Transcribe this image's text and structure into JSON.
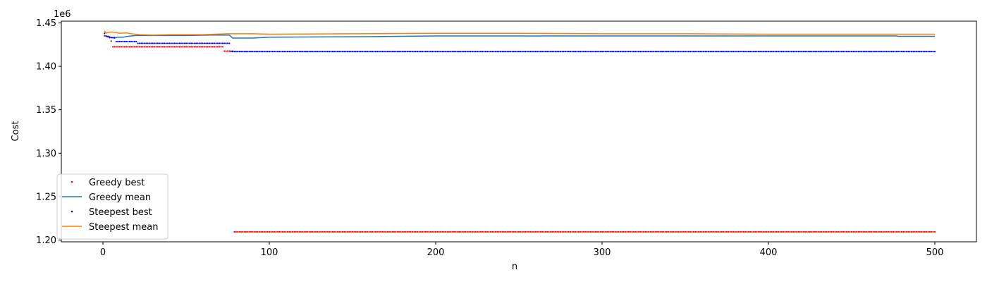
{
  "chart_data": {
    "type": "scatter",
    "xlabel": "n",
    "ylabel": "Cost",
    "offset_label": "1e6",
    "xlim": [
      -25,
      525
    ],
    "ylim": [
      1.198,
      1.452
    ],
    "x_ticks": [
      0,
      100,
      200,
      300,
      400,
      500
    ],
    "x_tick_labels": [
      "0",
      "100",
      "200",
      "300",
      "400",
      "500"
    ],
    "y_ticks": [
      1.2,
      1.25,
      1.3,
      1.35,
      1.4,
      1.45
    ],
    "y_tick_labels": [
      "1.20",
      "1.25",
      "1.30",
      "1.35",
      "1.40",
      "1.45"
    ],
    "grid": false,
    "legend_position": "lower-left",
    "series": [
      {
        "name": "Greedy best",
        "style": "points",
        "color": "#ff0000",
        "steps": [
          [
            1,
            1.435
          ],
          [
            3,
            1.434
          ],
          [
            5,
            1.429
          ],
          [
            6,
            1.4225
          ],
          [
            73,
            1.4175
          ],
          [
            79,
            1.2095
          ]
        ],
        "x_end": 500
      },
      {
        "name": "Greedy mean",
        "style": "line",
        "color": "#1f77b4",
        "points": [
          [
            1,
            1.436
          ],
          [
            2,
            1.4345
          ],
          [
            4,
            1.4335
          ],
          [
            7,
            1.4325
          ],
          [
            9,
            1.4335
          ],
          [
            12,
            1.4335
          ],
          [
            15,
            1.4345
          ],
          [
            20,
            1.4355
          ],
          [
            30,
            1.4355
          ],
          [
            50,
            1.4355
          ],
          [
            65,
            1.436
          ],
          [
            76,
            1.436
          ],
          [
            78,
            1.4325
          ],
          [
            90,
            1.4325
          ],
          [
            100,
            1.4335
          ],
          [
            150,
            1.434
          ],
          [
            200,
            1.435
          ],
          [
            250,
            1.435
          ],
          [
            300,
            1.435
          ],
          [
            350,
            1.435
          ],
          [
            400,
            1.435
          ],
          [
            477,
            1.435
          ],
          [
            478,
            1.4345
          ],
          [
            500,
            1.4345
          ]
        ]
      },
      {
        "name": "Steepest best",
        "style": "points",
        "color": "#0000ff",
        "steps": [
          [
            1,
            1.438
          ],
          [
            2,
            1.4345
          ],
          [
            4,
            1.433
          ],
          [
            8,
            1.4285
          ],
          [
            21,
            1.4265
          ],
          [
            77,
            1.417
          ]
        ],
        "x_end": 500
      },
      {
        "name": "Steepest mean",
        "style": "line",
        "color": "#ff7f0e",
        "points": [
          [
            1,
            1.441
          ],
          [
            2,
            1.438
          ],
          [
            3,
            1.439
          ],
          [
            5,
            1.4395
          ],
          [
            8,
            1.439
          ],
          [
            10,
            1.438
          ],
          [
            14,
            1.4385
          ],
          [
            17,
            1.4375
          ],
          [
            22,
            1.4365
          ],
          [
            30,
            1.436
          ],
          [
            40,
            1.4365
          ],
          [
            60,
            1.4365
          ],
          [
            75,
            1.4375
          ],
          [
            90,
            1.4375
          ],
          [
            100,
            1.437
          ],
          [
            150,
            1.4375
          ],
          [
            200,
            1.438
          ],
          [
            250,
            1.438
          ],
          [
            300,
            1.4375
          ],
          [
            350,
            1.4375
          ],
          [
            400,
            1.437
          ],
          [
            450,
            1.437
          ],
          [
            500,
            1.437
          ]
        ]
      }
    ]
  }
}
